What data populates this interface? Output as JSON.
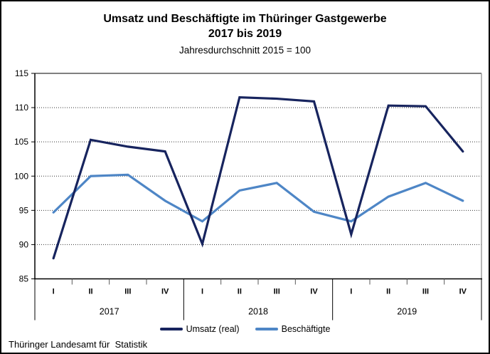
{
  "title": {
    "line1": "Umsatz und Beschäftigte im Thüringer Gastgewerbe",
    "line2": "2017 bis 2019",
    "subtitle": "Jahresdurchschnitt 2015 = 100"
  },
  "footer": "Thüringer Landesamt für  Statistik",
  "colors": {
    "umsatz": "#17245e",
    "beschaeftigte": "#4e86c6",
    "grid": "#333333",
    "axis": "#000000",
    "plot_right_frame": "#9e9e9e",
    "minor_tick": "#595959"
  },
  "chart_data": {
    "type": "line",
    "title": "Umsatz und Beschäftigte im Thüringer Gastgewerbe 2017 bis 2019",
    "subtitle": "Jahresdurchschnitt 2015 = 100",
    "xlabel": "",
    "ylabel": "",
    "ylim": [
      85,
      115
    ],
    "yticks": [
      85,
      90,
      95,
      100,
      105,
      110,
      115
    ],
    "grid": "horizontal-dotted",
    "legend_position": "bottom-center",
    "x_groups": [
      {
        "year": "2017",
        "quarters": [
          "I",
          "II",
          "III",
          "IV"
        ]
      },
      {
        "year": "2018",
        "quarters": [
          "I",
          "II",
          "III",
          "IV"
        ]
      },
      {
        "year": "2019",
        "quarters": [
          "I",
          "II",
          "III",
          "IV"
        ]
      }
    ],
    "categories": [
      "2017-I",
      "2017-II",
      "2017-III",
      "2017-IV",
      "2018-I",
      "2018-II",
      "2018-III",
      "2018-IV",
      "2019-I",
      "2019-II",
      "2019-III",
      "2019-IV"
    ],
    "series": [
      {
        "name": "Umsatz (real)",
        "color": "#17245e",
        "values": [
          88.0,
          105.3,
          104.3,
          103.6,
          90.1,
          111.5,
          111.3,
          110.9,
          91.5,
          110.3,
          110.2,
          103.6
        ]
      },
      {
        "name": "Beschäftigte",
        "color": "#4e86c6",
        "values": [
          94.7,
          100.0,
          100.2,
          96.4,
          93.4,
          97.9,
          99.0,
          94.8,
          93.4,
          97.0,
          99.0,
          96.4
        ]
      }
    ]
  }
}
